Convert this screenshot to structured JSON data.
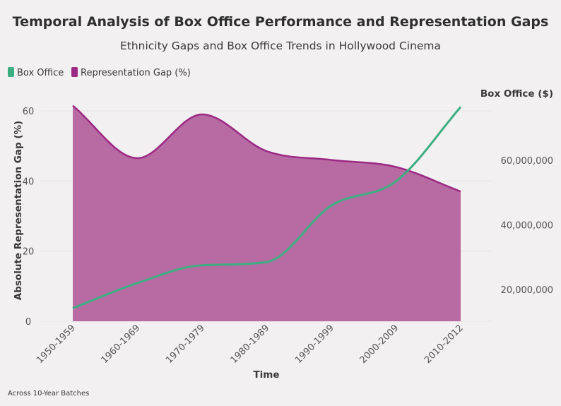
{
  "chart_data": {
    "type": "area",
    "title": "Temporal Analysis of Box Office Performance and Representation Gaps",
    "subtitle": "Ethnicity Gaps and Box Office Trends in Hollywood Cinema",
    "footnote": "Across 10-Year Batches",
    "xlabel": "Time",
    "categories": [
      "1950-1959",
      "1960-1969",
      "1970-1979",
      "1980-1989",
      "1990-1999",
      "2000-2009",
      "2010-2012"
    ],
    "legend": {
      "placement": "top-left"
    },
    "left_axis": {
      "label": "Absolute Representation Gap (%)",
      "range": [
        0,
        60
      ],
      "ticks": [
        0,
        20,
        40,
        60
      ]
    },
    "right_axis": {
      "label": "Box Office ($)",
      "range": [
        12000000,
        78000000
      ],
      "ticks": [
        20000000,
        40000000,
        60000000
      ],
      "tick_labels": [
        "20,000,000",
        "40,000,000",
        "60,000,000"
      ]
    },
    "series": [
      {
        "name": "Box Office",
        "type": "line",
        "axis": "right",
        "color": "#3dae82",
        "values": [
          14200000,
          22000000,
          27500000,
          28500000,
          46000000,
          53500000,
          76500000
        ]
      },
      {
        "name": "Representation Gap (%)",
        "type": "area",
        "axis": "left",
        "color": "#9b2a84",
        "fill": "#b86aa2",
        "values": [
          61.5,
          46.5,
          59,
          48.5,
          46,
          44,
          37
        ]
      }
    ],
    "grid": true
  }
}
